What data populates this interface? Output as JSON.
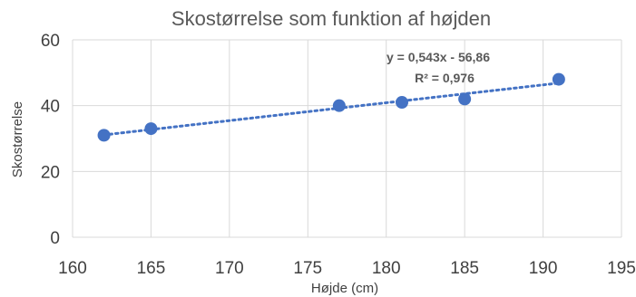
{
  "chart_data": {
    "type": "scatter",
    "title": "Skostørrelse som funktion af højden",
    "xlabel": "Højde (cm)",
    "ylabel": "Skostørrelse",
    "xlim": [
      160,
      195
    ],
    "ylim": [
      0,
      60
    ],
    "x_ticks": [
      "160",
      "165",
      "170",
      "175",
      "180",
      "185",
      "190",
      "195"
    ],
    "y_ticks": [
      "0",
      "20",
      "40",
      "60"
    ],
    "grid": "vertical and horizontal",
    "points": [
      {
        "x": 162,
        "y": 31
      },
      {
        "x": 165,
        "y": 33
      },
      {
        "x": 177,
        "y": 40
      },
      {
        "x": 181,
        "y": 41
      },
      {
        "x": 185,
        "y": 42
      },
      {
        "x": 191,
        "y": 48
      }
    ],
    "trendline": {
      "type": "linear",
      "slope": 0.543,
      "intercept": -56.86,
      "x_range": [
        162,
        191
      ],
      "equation": "y = 0,543x - 56,86",
      "r_squared": "R² = 0,976"
    },
    "colors": {
      "marker": "#4472C4",
      "trendline": "#4472C4",
      "grid": "#D9D9D9",
      "text": "#595959"
    }
  }
}
